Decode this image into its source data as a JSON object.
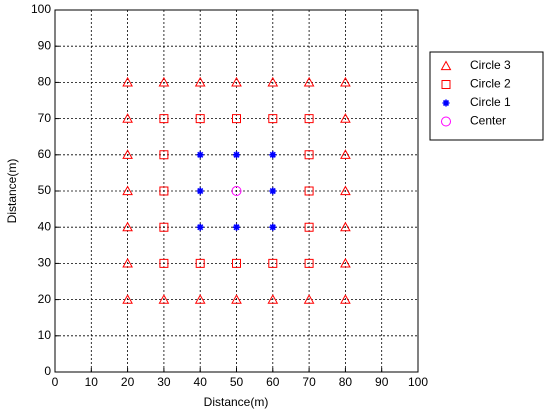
{
  "chart_data": {
    "type": "scatter",
    "xlabel": "Distance(m)",
    "ylabel": "Distance(m)",
    "xlim": [
      0,
      100
    ],
    "ylim": [
      0,
      100
    ],
    "xticks": [
      0,
      10,
      20,
      30,
      40,
      50,
      60,
      70,
      80,
      90,
      100
    ],
    "yticks": [
      0,
      10,
      20,
      30,
      40,
      50,
      60,
      70,
      80,
      90,
      100
    ],
    "grid": true,
    "legend": "outside-right",
    "series": [
      {
        "name": "Circle 3",
        "color": "#ff0000",
        "marker": "triangle",
        "x": [
          20,
          20,
          20,
          20,
          20,
          20,
          20,
          80,
          80,
          80,
          80,
          80,
          80,
          80,
          30,
          40,
          50,
          60,
          70,
          30,
          40,
          50,
          60,
          70
        ],
        "y": [
          20,
          30,
          40,
          50,
          60,
          70,
          80,
          20,
          30,
          40,
          50,
          60,
          70,
          80,
          20,
          20,
          20,
          20,
          20,
          80,
          80,
          80,
          80,
          80
        ]
      },
      {
        "name": "Circle 2",
        "color": "#ff0000",
        "marker": "square",
        "x": [
          30,
          30,
          30,
          30,
          30,
          70,
          70,
          70,
          70,
          70,
          40,
          50,
          60,
          40,
          50,
          60
        ],
        "y": [
          30,
          40,
          50,
          60,
          70,
          30,
          40,
          50,
          60,
          70,
          30,
          30,
          30,
          70,
          70,
          70
        ]
      },
      {
        "name": "Circle 1",
        "color": "#0000ff",
        "marker": "star",
        "x": [
          40,
          40,
          40,
          60,
          60,
          60,
          50,
          50
        ],
        "y": [
          40,
          50,
          60,
          40,
          50,
          60,
          40,
          60
        ]
      },
      {
        "name": "Center",
        "color": "#ff00ff",
        "marker": "circle",
        "x": [
          50
        ],
        "y": [
          50
        ]
      }
    ]
  }
}
